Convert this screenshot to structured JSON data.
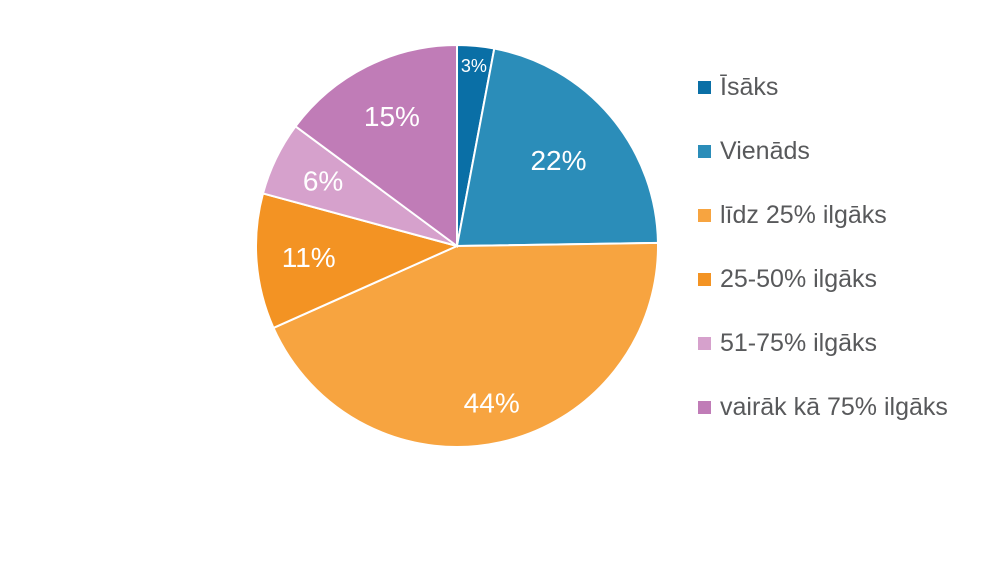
{
  "chart_data": {
    "type": "pie",
    "categories": [
      "Īsāks",
      "Vienāds",
      "līdz 25% ilgāks",
      "25-50% ilgāks",
      "51-75% ilgāks",
      "vairāk kā 75% ilgāks"
    ],
    "values": [
      3,
      22,
      44,
      11,
      6,
      15
    ],
    "value_labels": [
      "3%",
      "22%",
      "44%",
      "11%",
      "6%",
      "15%"
    ],
    "colors": [
      "#0a6fa6",
      "#2b8db9",
      "#f7a440",
      "#f39323",
      "#d6a1cc",
      "#c07cb7"
    ],
    "start_angle": "12 o'clock",
    "direction": "clockwise",
    "legend_position": "right"
  }
}
